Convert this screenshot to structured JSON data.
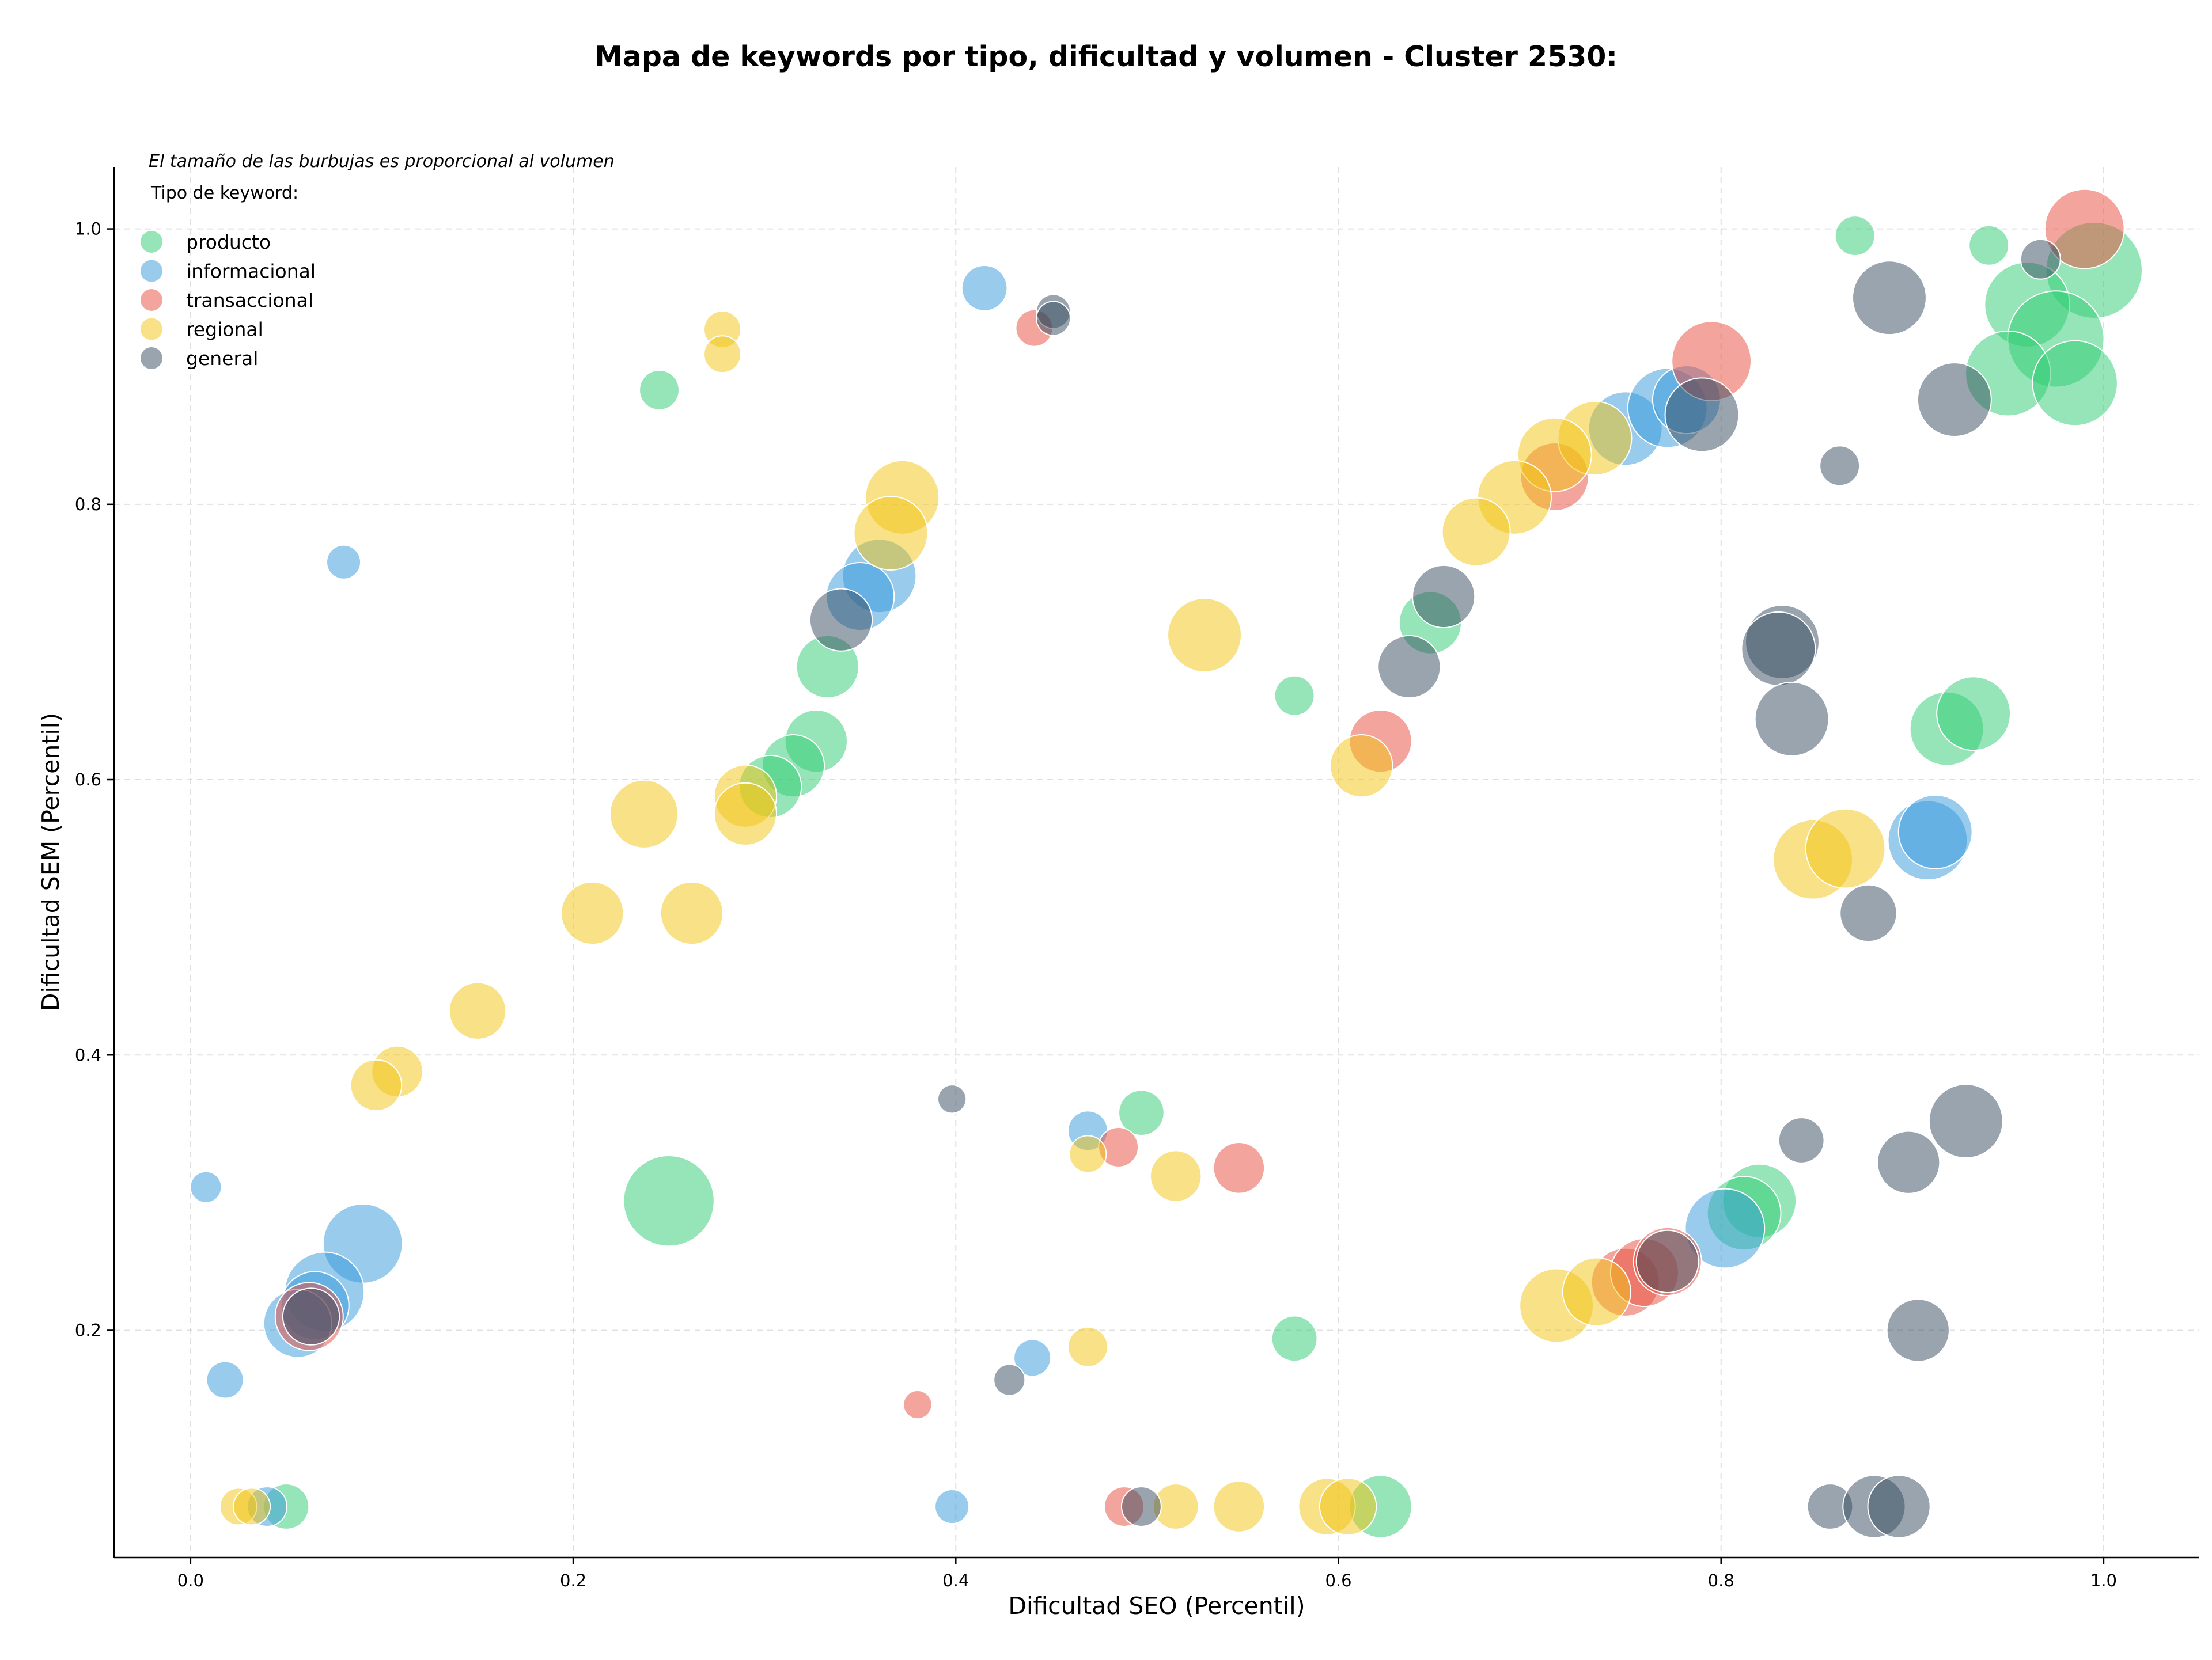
{
  "chart_data": {
    "type": "scatter",
    "title": "Mapa de keywords por tipo, dificultad y volumen - Cluster 2530:",
    "subtitle": "El tamaño de las burbujas es proporcional al volumen",
    "xlabel": "Dificultad SEO (Percentil)",
    "ylabel": "Dificultad SEM (Percentil)",
    "xlim": [
      -0.04,
      1.05
    ],
    "ylim": [
      0.035,
      1.045
    ],
    "xticks": [
      "0.0",
      "0.2",
      "0.4",
      "0.6",
      "0.8",
      "1.0"
    ],
    "yticks": [
      "0.2",
      "0.4",
      "0.6",
      "0.8",
      "1.0"
    ],
    "grid": true,
    "legend_title": "Tipo de keyword:",
    "legend_position": "top-left",
    "series": [
      {
        "name": "producto",
        "color": "#2ecc71",
        "points": [
          {
            "x": 0.87,
            "y": 0.995,
            "r": 14
          },
          {
            "x": 0.94,
            "y": 0.988,
            "r": 14
          },
          {
            "x": 0.995,
            "y": 0.97,
            "r": 34
          },
          {
            "x": 0.96,
            "y": 0.945,
            "r": 30
          },
          {
            "x": 0.975,
            "y": 0.92,
            "r": 34
          },
          {
            "x": 0.95,
            "y": 0.895,
            "r": 30
          },
          {
            "x": 0.985,
            "y": 0.888,
            "r": 30
          },
          {
            "x": 0.245,
            "y": 0.883,
            "r": 14
          },
          {
            "x": 0.648,
            "y": 0.714,
            "r": 22
          },
          {
            "x": 0.333,
            "y": 0.682,
            "r": 22
          },
          {
            "x": 0.577,
            "y": 0.661,
            "r": 14
          },
          {
            "x": 0.918,
            "y": 0.637,
            "r": 26
          },
          {
            "x": 0.932,
            "y": 0.648,
            "r": 26
          },
          {
            "x": 0.327,
            "y": 0.628,
            "r": 22
          },
          {
            "x": 0.315,
            "y": 0.61,
            "r": 22
          },
          {
            "x": 0.303,
            "y": 0.595,
            "r": 22
          },
          {
            "x": 0.497,
            "y": 0.358,
            "r": 16
          },
          {
            "x": 0.25,
            "y": 0.294,
            "r": 32
          },
          {
            "x": 0.82,
            "y": 0.294,
            "r": 26
          },
          {
            "x": 0.812,
            "y": 0.285,
            "r": 26
          },
          {
            "x": 0.577,
            "y": 0.194,
            "r": 16
          },
          {
            "x": 0.05,
            "y": 0.072,
            "r": 16
          },
          {
            "x": 0.622,
            "y": 0.072,
            "r": 22
          }
        ]
      },
      {
        "name": "informacional",
        "color": "#3498db",
        "points": [
          {
            "x": 0.415,
            "y": 0.957,
            "r": 16
          },
          {
            "x": 0.75,
            "y": 0.855,
            "r": 26
          },
          {
            "x": 0.772,
            "y": 0.87,
            "r": 28
          },
          {
            "x": 0.782,
            "y": 0.876,
            "r": 24
          },
          {
            "x": 0.36,
            "y": 0.748,
            "r": 26
          },
          {
            "x": 0.35,
            "y": 0.733,
            "r": 24
          },
          {
            "x": 0.08,
            "y": 0.758,
            "r": 12
          },
          {
            "x": 0.908,
            "y": 0.556,
            "r": 28
          },
          {
            "x": 0.912,
            "y": 0.562,
            "r": 26
          },
          {
            "x": 0.469,
            "y": 0.345,
            "r": 14
          },
          {
            "x": 0.008,
            "y": 0.304,
            "r": 11
          },
          {
            "x": 0.09,
            "y": 0.263,
            "r": 28
          },
          {
            "x": 0.07,
            "y": 0.228,
            "r": 28
          },
          {
            "x": 0.065,
            "y": 0.218,
            "r": 24
          },
          {
            "x": 0.056,
            "y": 0.205,
            "r": 24
          },
          {
            "x": 0.802,
            "y": 0.274,
            "r": 28
          },
          {
            "x": 0.44,
            "y": 0.18,
            "r": 13
          },
          {
            "x": 0.018,
            "y": 0.164,
            "r": 13
          },
          {
            "x": 0.398,
            "y": 0.072,
            "r": 12
          },
          {
            "x": 0.04,
            "y": 0.072,
            "r": 14
          }
        ]
      },
      {
        "name": "transaccional",
        "color": "#e74c3c",
        "points": [
          {
            "x": 0.99,
            "y": 1.0,
            "r": 28
          },
          {
            "x": 0.441,
            "y": 0.928,
            "r": 13
          },
          {
            "x": 0.795,
            "y": 0.904,
            "r": 28
          },
          {
            "x": 0.713,
            "y": 0.82,
            "r": 24
          },
          {
            "x": 0.622,
            "y": 0.628,
            "r": 22
          },
          {
            "x": 0.548,
            "y": 0.318,
            "r": 18
          },
          {
            "x": 0.485,
            "y": 0.333,
            "r": 14
          },
          {
            "x": 0.75,
            "y": 0.235,
            "r": 24
          },
          {
            "x": 0.76,
            "y": 0.242,
            "r": 24
          },
          {
            "x": 0.772,
            "y": 0.25,
            "r": 24
          },
          {
            "x": 0.062,
            "y": 0.21,
            "r": 24
          },
          {
            "x": 0.38,
            "y": 0.146,
            "r": 10
          },
          {
            "x": 0.488,
            "y": 0.072,
            "r": 14
          }
        ]
      },
      {
        "name": "regional",
        "color": "#f1c40f",
        "points": [
          {
            "x": 0.278,
            "y": 0.927,
            "r": 13
          },
          {
            "x": 0.278,
            "y": 0.909,
            "r": 13
          },
          {
            "x": 0.734,
            "y": 0.848,
            "r": 26
          },
          {
            "x": 0.713,
            "y": 0.836,
            "r": 26
          },
          {
            "x": 0.692,
            "y": 0.805,
            "r": 26
          },
          {
            "x": 0.672,
            "y": 0.78,
            "r": 24
          },
          {
            "x": 0.372,
            "y": 0.805,
            "r": 26
          },
          {
            "x": 0.366,
            "y": 0.779,
            "r": 26
          },
          {
            "x": 0.53,
            "y": 0.705,
            "r": 26
          },
          {
            "x": 0.612,
            "y": 0.61,
            "r": 22
          },
          {
            "x": 0.29,
            "y": 0.588,
            "r": 22
          },
          {
            "x": 0.29,
            "y": 0.575,
            "r": 22
          },
          {
            "x": 0.237,
            "y": 0.575,
            "r": 24
          },
          {
            "x": 0.848,
            "y": 0.542,
            "r": 28
          },
          {
            "x": 0.865,
            "y": 0.55,
            "r": 28
          },
          {
            "x": 0.21,
            "y": 0.503,
            "r": 22
          },
          {
            "x": 0.262,
            "y": 0.503,
            "r": 22
          },
          {
            "x": 0.15,
            "y": 0.432,
            "r": 20
          },
          {
            "x": 0.108,
            "y": 0.388,
            "r": 18
          },
          {
            "x": 0.097,
            "y": 0.378,
            "r": 18
          },
          {
            "x": 0.469,
            "y": 0.328,
            "r": 13
          },
          {
            "x": 0.515,
            "y": 0.312,
            "r": 18
          },
          {
            "x": 0.714,
            "y": 0.218,
            "r": 26
          },
          {
            "x": 0.735,
            "y": 0.228,
            "r": 24
          },
          {
            "x": 0.469,
            "y": 0.188,
            "r": 14
          },
          {
            "x": 0.025,
            "y": 0.072,
            "r": 13
          },
          {
            "x": 0.032,
            "y": 0.072,
            "r": 13
          },
          {
            "x": 0.515,
            "y": 0.072,
            "r": 16
          },
          {
            "x": 0.548,
            "y": 0.072,
            "r": 18
          },
          {
            "x": 0.594,
            "y": 0.072,
            "r": 20
          },
          {
            "x": 0.605,
            "y": 0.072,
            "r": 20
          }
        ]
      },
      {
        "name": "general",
        "color": "#34495e",
        "points": [
          {
            "x": 0.967,
            "y": 0.978,
            "r": 14
          },
          {
            "x": 0.888,
            "y": 0.95,
            "r": 26
          },
          {
            "x": 0.451,
            "y": 0.94,
            "r": 12
          },
          {
            "x": 0.451,
            "y": 0.935,
            "r": 12
          },
          {
            "x": 0.922,
            "y": 0.876,
            "r": 26
          },
          {
            "x": 0.79,
            "y": 0.865,
            "r": 26
          },
          {
            "x": 0.862,
            "y": 0.828,
            "r": 14
          },
          {
            "x": 0.832,
            "y": 0.7,
            "r": 26
          },
          {
            "x": 0.83,
            "y": 0.695,
            "r": 26
          },
          {
            "x": 0.837,
            "y": 0.644,
            "r": 26
          },
          {
            "x": 0.637,
            "y": 0.682,
            "r": 22
          },
          {
            "x": 0.655,
            "y": 0.733,
            "r": 22
          },
          {
            "x": 0.34,
            "y": 0.716,
            "r": 22
          },
          {
            "x": 0.877,
            "y": 0.503,
            "r": 20
          },
          {
            "x": 0.398,
            "y": 0.368,
            "r": 10
          },
          {
            "x": 0.842,
            "y": 0.338,
            "r": 16
          },
          {
            "x": 0.928,
            "y": 0.352,
            "r": 26
          },
          {
            "x": 0.898,
            "y": 0.322,
            "r": 22
          },
          {
            "x": 0.903,
            "y": 0.2,
            "r": 22
          },
          {
            "x": 0.772,
            "y": 0.25,
            "r": 22
          },
          {
            "x": 0.428,
            "y": 0.164,
            "r": 11
          },
          {
            "x": 0.497,
            "y": 0.072,
            "r": 14
          },
          {
            "x": 0.857,
            "y": 0.072,
            "r": 16
          },
          {
            "x": 0.88,
            "y": 0.072,
            "r": 22
          },
          {
            "x": 0.893,
            "y": 0.072,
            "r": 22
          },
          {
            "x": 0.063,
            "y": 0.21,
            "r": 20
          }
        ]
      }
    ]
  }
}
